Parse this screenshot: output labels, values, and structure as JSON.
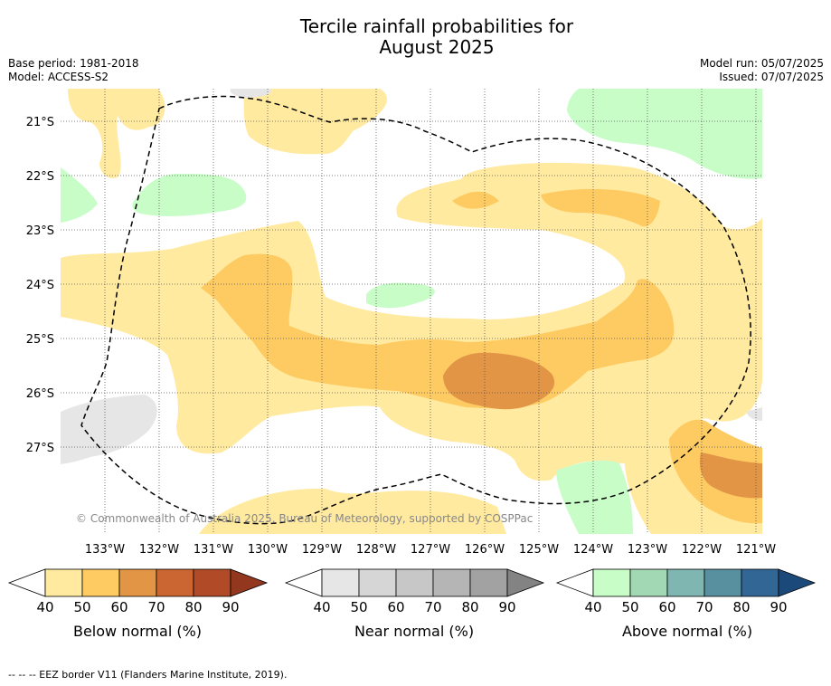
{
  "title_line1": "Tercile rainfall probabilities for",
  "title_line2": "August 2025",
  "base_period": "Base period: 1981-2018",
  "model": "Model: ACCESS-S2",
  "model_run": "Model run: 05/07/2025",
  "issued": "Issued: 07/07/2025",
  "copyright": "© Commonwealth of Australia 2025, Bureau of Meteorology, supported by COSPPac",
  "footnote": "--  --  -- EEZ border V11 (Flanders Marine Institute, 2019).",
  "lat_labels": [
    "21°S",
    "22°S",
    "23°S",
    "24°S",
    "25°S",
    "26°S",
    "27°S"
  ],
  "lon_labels": [
    "133°W",
    "132°W",
    "131°W",
    "130°W",
    "129°W",
    "128°W",
    "127°W",
    "126°W",
    "125°W",
    "124°W",
    "123°W",
    "122°W",
    "121°W"
  ],
  "colorbars": [
    {
      "name": "below",
      "label": "Below normal (%)",
      "ticks": [
        "40",
        "50",
        "60",
        "70",
        "80",
        "90"
      ],
      "colors": [
        "#ffffff",
        "#ffeaa0",
        "#fecb63",
        "#e39546",
        "#cb6632",
        "#b04a27",
        "#93381f"
      ]
    },
    {
      "name": "near",
      "label": "Near normal (%)",
      "ticks": [
        "40",
        "50",
        "60",
        "70",
        "80",
        "90"
      ],
      "colors": [
        "#ffffff",
        "#e6e6e6",
        "#d6d6d6",
        "#c7c7c7",
        "#b5b5b5",
        "#a2a2a2",
        "#838383"
      ]
    },
    {
      "name": "above",
      "label": "Above normal (%)",
      "ticks": [
        "40",
        "50",
        "60",
        "70",
        "80",
        "90"
      ],
      "colors": [
        "#ffffff",
        "#c8fdc8",
        "#a3d8b5",
        "#80b6b2",
        "#5990a0",
        "#326695",
        "#1b4979"
      ]
    }
  ]
}
